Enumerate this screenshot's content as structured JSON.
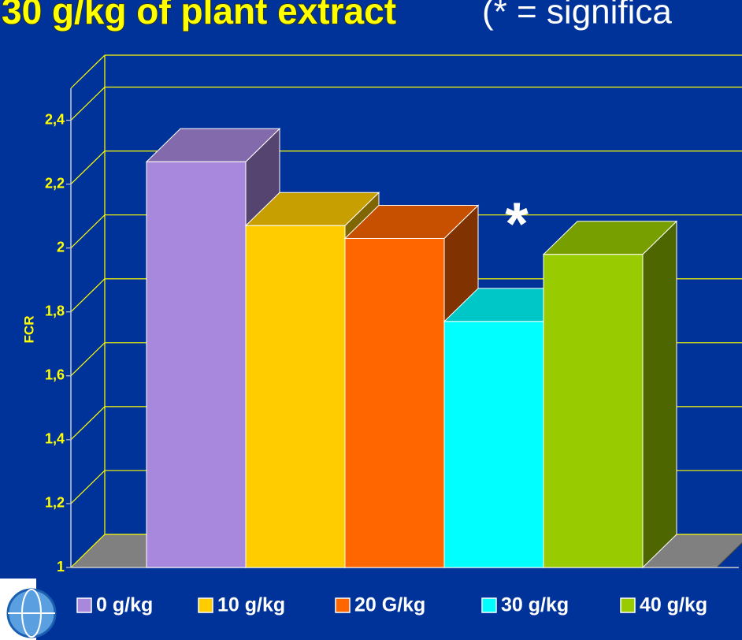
{
  "chart_data": {
    "type": "bar3d",
    "title": "30 g/kg of plant extract",
    "title_note": "(* = significa",
    "y_label": "FCR",
    "annotation": "*",
    "series": [
      {
        "name": "0 g/kg",
        "color": "#a888dd",
        "values": [
          2.27
        ]
      },
      {
        "name": "10 g/kg",
        "color": "#ffcc00",
        "values": [
          2.07
        ]
      },
      {
        "name": "20 G/kg",
        "color": "#ff6600",
        "values": [
          2.03
        ]
      },
      {
        "name": "30 g/kg",
        "color": "#00ffff",
        "values": [
          1.77
        ]
      },
      {
        "name": "40 g/kg",
        "color": "#99cc00",
        "values": [
          1.98
        ]
      }
    ],
    "ylim": [
      1,
      2.5
    ],
    "yticks": [
      1,
      {
        "value": 1.2,
        "label": "1,2"
      },
      {
        "value": 1.4,
        "label": "1,4"
      },
      {
        "value": 1.6,
        "label": "1,6"
      },
      {
        "value": 1.8,
        "label": "1,8"
      },
      2,
      {
        "value": 2.2,
        "label": "2,2"
      },
      {
        "value": 2.4,
        "label": "2,4"
      }
    ],
    "grid": true,
    "grid_color": "#ffff00",
    "legend": "bottom"
  }
}
